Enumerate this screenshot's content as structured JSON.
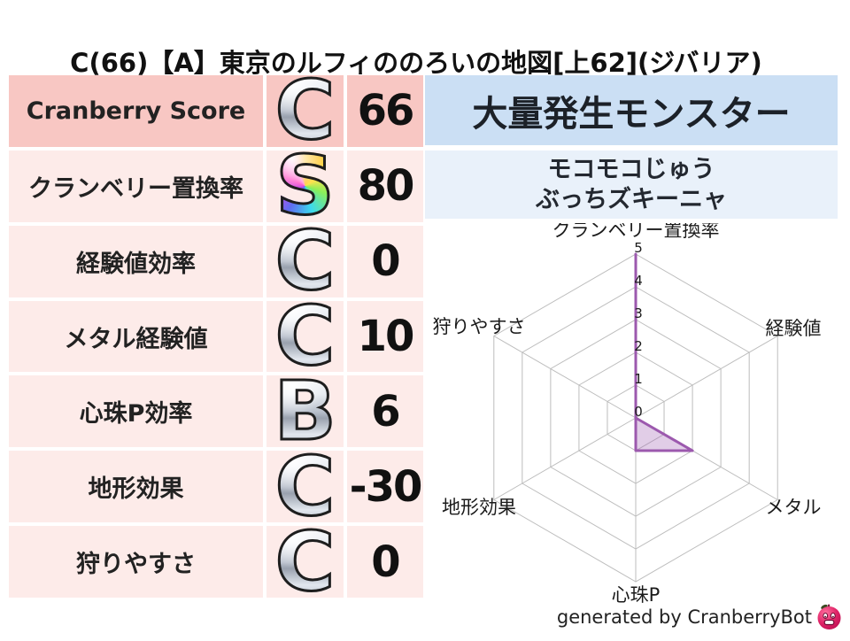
{
  "title": "C(66)【A】東京のルフィののろいの地図[上62](ジバリア)",
  "score_table": {
    "rows": [
      {
        "label": "Cranberry Score",
        "grade": "C",
        "value": "66",
        "highlight": true
      },
      {
        "label": "クランベリー置換率",
        "grade": "S",
        "value": "80",
        "highlight": false
      },
      {
        "label": "経験値効率",
        "grade": "C",
        "value": "0",
        "highlight": false
      },
      {
        "label": "メタル経験値",
        "grade": "C",
        "value": "10",
        "highlight": false
      },
      {
        "label": "心珠P効率",
        "grade": "B",
        "value": "6",
        "highlight": false
      },
      {
        "label": "地形効果",
        "grade": "C",
        "value": "-30",
        "highlight": false
      },
      {
        "label": "狩りやすさ",
        "grade": "C",
        "value": "0",
        "highlight": false
      }
    ]
  },
  "monster_panel": {
    "header": "大量発生モンスター",
    "monsters": [
      "モコモコじゅう",
      "ぶっちズキーニャ"
    ]
  },
  "footer": {
    "credit": "generated by CranberryBot",
    "logo_icon": "cranberry-mascot-icon"
  },
  "chart_data": {
    "type": "radar",
    "axes": [
      "クランベリー置換率",
      "経験値",
      "メタル",
      "心珠P",
      "地形効果",
      "狩りやすさ"
    ],
    "values": [
      5,
      0,
      2,
      1,
      0,
      0
    ],
    "ticks": [
      0,
      1,
      2,
      3,
      4,
      5
    ],
    "rmax": 5,
    "grid": "on",
    "legend": "none",
    "line_color": "#9c59ae",
    "fill_color": "#9c59ae",
    "fill_opacity": 0.3,
    "grid_color": "#bdbdbd"
  },
  "colors": {
    "highlight_row_bg": "#f8c7c3",
    "row_bg": "#fdebe9",
    "monster_header_bg": "#cbdff4",
    "monster_box_bg": "#e9f1fa",
    "grade_silver": "#b9c0cc",
    "text": "#1a1a1a"
  }
}
